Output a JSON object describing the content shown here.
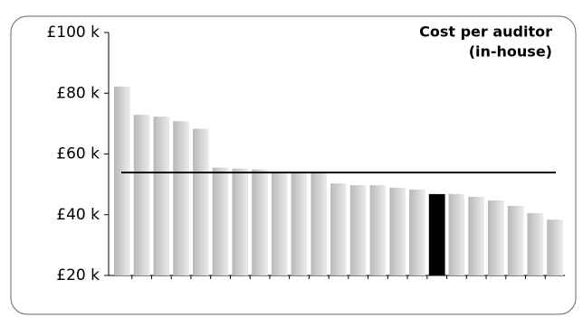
{
  "chart_data": {
    "type": "bar",
    "title": "Cost per auditor",
    "subtitle": "(in-house)",
    "categories": [
      null,
      null,
      null,
      null,
      null,
      null,
      null,
      null,
      null,
      null,
      null,
      null,
      null,
      null,
      null,
      null,
      null,
      null,
      null,
      null,
      null,
      null,
      null
    ],
    "values": [
      82.2,
      72.9,
      72.3,
      70.8,
      68.3,
      55.5,
      55.2,
      54.9,
      54,
      54,
      54,
      50.3,
      49.7,
      49.7,
      48.9,
      48.3,
      46.8,
      46.8,
      45.9,
      44.7,
      42.9,
      40.5,
      38.4
    ],
    "colors": [
      "#b8b8b8",
      "#b8b8b8",
      "#b8b8b8",
      "#b8b8b8",
      "#b8b8b8",
      "#b8b8b8",
      "#b8b8b8",
      "#b8b8b8",
      "#b8b8b8",
      "#b8b8b8",
      "#b8b8b8",
      "#b8b8b8",
      "#b8b8b8",
      "#b8b8b8",
      "#b8b8b8",
      "#b8b8b8",
      "#000000",
      "#b8b8b8",
      "#b8b8b8",
      "#b8b8b8",
      "#b8b8b8",
      "#b8b8b8",
      "#b8b8b8"
    ],
    "average": 53.9,
    "ylim": [
      20,
      100
    ],
    "yticks": [
      {
        "value": 20,
        "label": "£20 k"
      },
      {
        "value": 40,
        "label": "£40 k"
      },
      {
        "value": 60,
        "label": "£60 k"
      },
      {
        "value": 80,
        "label": "£80 k"
      },
      {
        "value": 100,
        "label": "£100 k"
      }
    ],
    "grid": false
  }
}
